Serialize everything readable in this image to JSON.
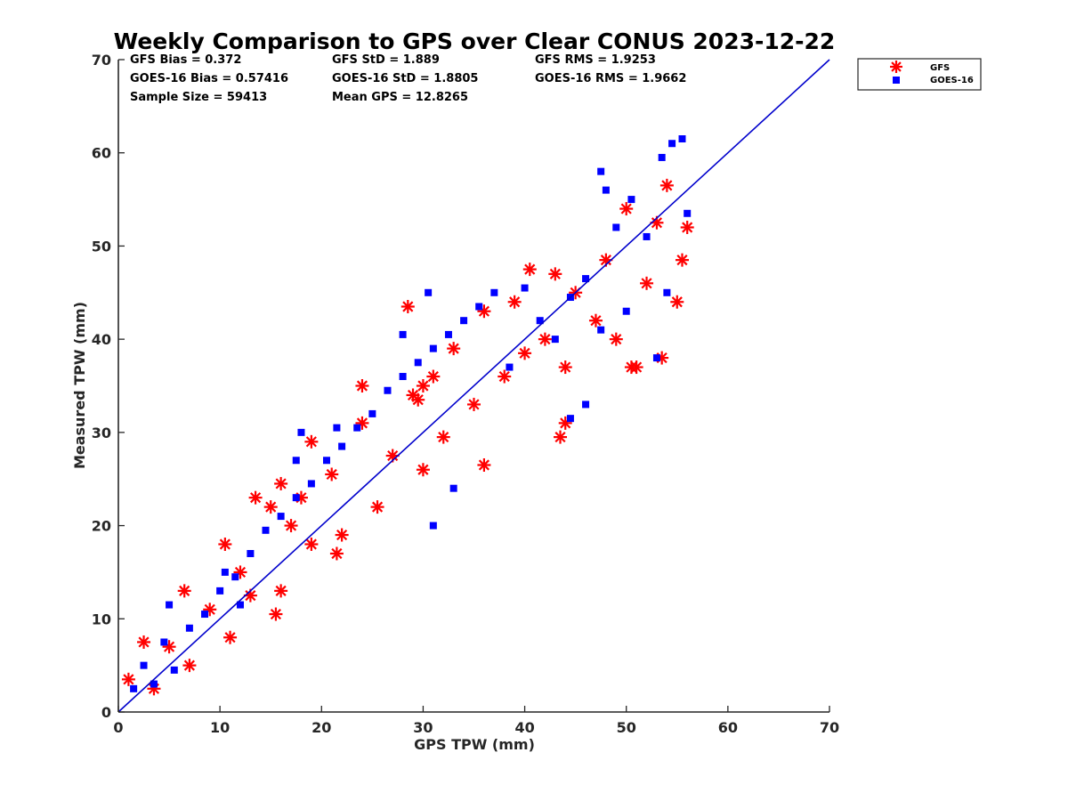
{
  "chart_data": {
    "type": "scatter",
    "title": "Weekly Comparison to GPS over Clear CONUS 2023-12-22",
    "xlabel": "GPS TPW (mm)",
    "ylabel": "Measured TPW (mm)",
    "xlim": [
      0,
      70
    ],
    "ylim": [
      0,
      70
    ],
    "xticks": [
      "0",
      "10",
      "20",
      "30",
      "40",
      "50",
      "60",
      "70"
    ],
    "yticks": [
      "0",
      "10",
      "20",
      "30",
      "40",
      "50",
      "60",
      "70"
    ],
    "grid": false,
    "legend_position": "top-right, outside",
    "stats": [
      [
        "GFS Bias = 0.372",
        "GFS StD = 1.889",
        "GFS RMS = 1.9253"
      ],
      [
        "GOES-16 Bias = 0.57416",
        "GOES-16 StD = 1.8805",
        "GOES-16 RMS = 1.9662"
      ],
      [
        "Sample Size = 59413",
        "Mean GPS = 12.8265"
      ]
    ],
    "reference_line": {
      "from": [
        0,
        0
      ],
      "to": [
        70,
        70
      ],
      "color": "#0000cc"
    },
    "series": [
      {
        "name": "GFS",
        "marker": "asterisk",
        "color": "#ff0000",
        "x": [
          1.0,
          2.5,
          3.5,
          5.0,
          7.0,
          9.0,
          11.0,
          12.0,
          13.0,
          15.0,
          16.0,
          17.0,
          18.0,
          19.0,
          21.0,
          22.0,
          24.0,
          25.5,
          27.0,
          29.0,
          30.0,
          31.0,
          32.0,
          33.0,
          35.0,
          36.0,
          38.0,
          39.0,
          40.0,
          42.0,
          43.0,
          44.0,
          45.0,
          47.0,
          48.0,
          49.0,
          50.0,
          51.0,
          52.0,
          53.0,
          54.0,
          55.0,
          56.0,
          43.5,
          50.5,
          53.5,
          55.5,
          28.5,
          29.5,
          30.0,
          36.0,
          40.5,
          44.0,
          13.5,
          15.5,
          16.0,
          21.5,
          19.0,
          24.0,
          10.5,
          6.5
        ],
        "y": [
          3.5,
          7.5,
          2.5,
          7.0,
          5.0,
          11.0,
          8.0,
          15.0,
          12.5,
          22.0,
          13.0,
          20.0,
          23.0,
          18.0,
          25.5,
          19.0,
          31.0,
          22.0,
          27.5,
          34.0,
          26.0,
          36.0,
          29.5,
          39.0,
          33.0,
          43.0,
          36.0,
          44.0,
          38.5,
          40.0,
          47.0,
          37.0,
          45.0,
          42.0,
          48.5,
          40.0,
          54.0,
          37.0,
          46.0,
          52.5,
          56.5,
          44.0,
          52.0,
          29.5,
          37.0,
          38.0,
          48.5,
          43.5,
          33.5,
          35.0,
          26.5,
          47.5,
          31.0,
          23.0,
          10.5,
          24.5,
          17.0,
          29.0,
          35.0,
          18.0,
          13.0
        ]
      },
      {
        "name": "GOES-16",
        "marker": "square",
        "color": "#0000ff",
        "x": [
          1.5,
          2.5,
          3.5,
          4.5,
          5.5,
          7.0,
          8.5,
          10.0,
          11.5,
          13.0,
          14.5,
          16.0,
          17.5,
          19.0,
          20.5,
          22.0,
          23.5,
          25.0,
          26.5,
          28.0,
          29.5,
          31.0,
          32.5,
          34.0,
          35.5,
          37.0,
          38.5,
          40.0,
          41.5,
          43.0,
          44.5,
          46.0,
          47.5,
          49.0,
          50.5,
          52.0,
          53.5,
          54.5,
          55.5,
          56.0,
          54.0,
          53.0,
          50.0,
          48.0,
          47.5,
          30.5,
          28.0,
          31.0,
          18.0,
          17.5,
          21.5,
          12.0,
          10.5,
          5.0,
          44.5,
          46.0,
          33.0
        ],
        "y": [
          2.5,
          5.0,
          3.0,
          7.5,
          4.5,
          9.0,
          10.5,
          13.0,
          14.5,
          17.0,
          19.5,
          21.0,
          23.0,
          24.5,
          27.0,
          28.5,
          30.5,
          32.0,
          34.5,
          36.0,
          37.5,
          39.0,
          40.5,
          42.0,
          43.5,
          45.0,
          37.0,
          45.5,
          42.0,
          40.0,
          44.5,
          46.5,
          58.0,
          52.0,
          55.0,
          51.0,
          59.5,
          61.0,
          61.5,
          53.5,
          45.0,
          38.0,
          43.0,
          56.0,
          41.0,
          45.0,
          40.5,
          20.0,
          30.0,
          27.0,
          30.5,
          11.5,
          15.0,
          11.5,
          31.5,
          33.0,
          24.0
        ]
      }
    ]
  }
}
